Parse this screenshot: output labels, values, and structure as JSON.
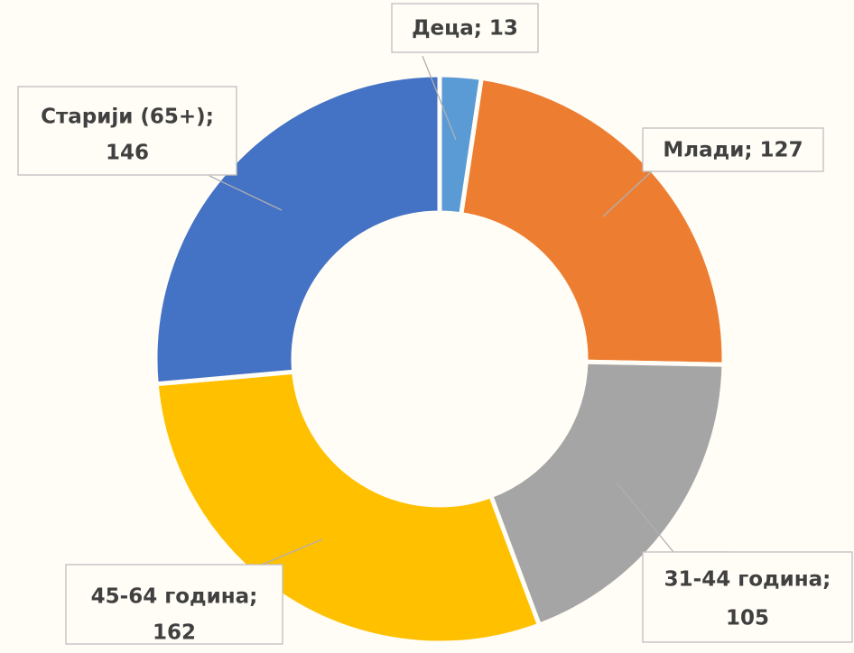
{
  "chart_data": {
    "type": "pie",
    "values": [
      13,
      127,
      105,
      162,
      146
    ],
    "value_labels": [
      [
        "Деца; 13"
      ],
      [
        "Млади; 127"
      ],
      [
        "31-44 година;",
        "105"
      ],
      [
        "45-64 година;",
        "162"
      ],
      [
        "Старији (65+);",
        "146"
      ]
    ],
    "colors": [
      "#5b9bd5",
      "#ed7d31",
      "#a5a5a5",
      "#ffc000",
      "#4472c4"
    ]
  }
}
